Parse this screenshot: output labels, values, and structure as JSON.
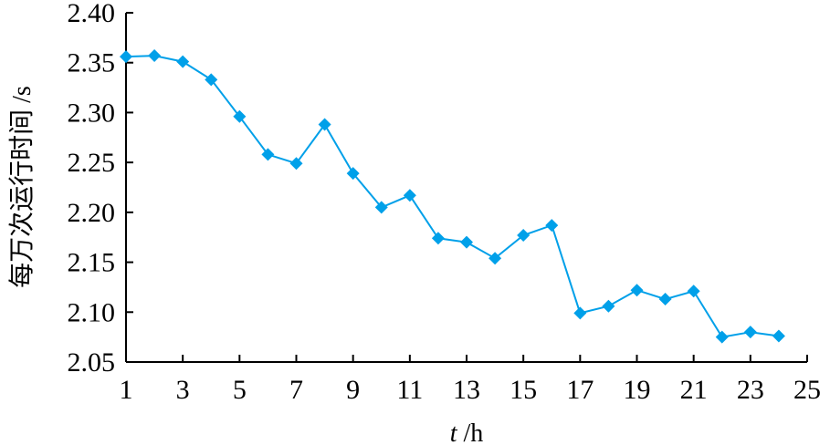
{
  "chart_data": {
    "type": "line",
    "title": "",
    "xlabel_italic": "t",
    "xlabel_unit": " /h",
    "ylabel": "每万次运行时间 /s",
    "xlim": [
      1,
      25
    ],
    "ylim": [
      2.05,
      2.4
    ],
    "x_ticks": [
      "1",
      "3",
      "5",
      "7",
      "9",
      "11",
      "13",
      "15",
      "17",
      "19",
      "21",
      "23",
      "25"
    ],
    "y_ticks": [
      "2.05",
      "2.10",
      "2.15",
      "2.20",
      "2.25",
      "2.30",
      "2.35",
      "2.40"
    ],
    "grid": false,
    "legend": "none",
    "series_color": "#00a0e9",
    "series": [
      {
        "x": [
          1,
          2,
          3,
          4,
          5,
          6,
          7,
          8,
          9,
          10,
          11,
          12,
          13,
          14,
          15,
          16,
          17,
          18,
          19,
          20,
          21,
          22,
          23,
          24
        ],
        "values": [
          2.356,
          2.357,
          2.351,
          2.333,
          2.296,
          2.258,
          2.249,
          2.288,
          2.239,
          2.205,
          2.217,
          2.174,
          2.17,
          2.154,
          2.177,
          2.187,
          2.099,
          2.106,
          2.122,
          2.113,
          2.121,
          2.075,
          2.08,
          2.076
        ]
      }
    ]
  }
}
